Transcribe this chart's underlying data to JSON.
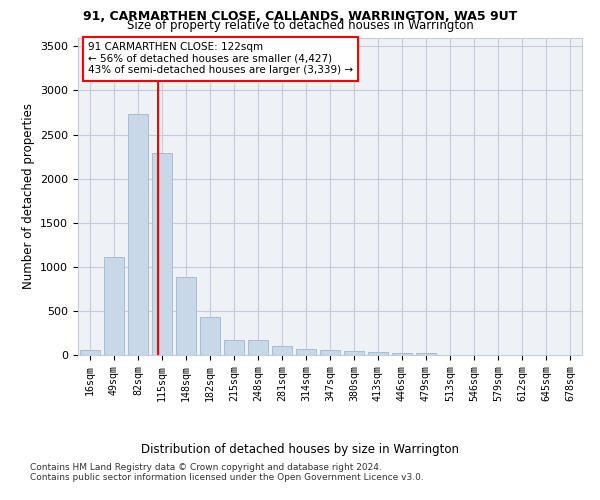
{
  "title": "91, CARMARTHEN CLOSE, CALLANDS, WARRINGTON, WA5 9UT",
  "subtitle": "Size of property relative to detached houses in Warrington",
  "xlabel": "Distribution of detached houses by size in Warrington",
  "ylabel": "Number of detached properties",
  "bar_color": "#c8d8e8",
  "bar_edgecolor": "#a0b8cc",
  "categories": [
    "16sqm",
    "49sqm",
    "82sqm",
    "115sqm",
    "148sqm",
    "182sqm",
    "215sqm",
    "248sqm",
    "281sqm",
    "314sqm",
    "347sqm",
    "380sqm",
    "413sqm",
    "446sqm",
    "479sqm",
    "513sqm",
    "546sqm",
    "579sqm",
    "612sqm",
    "645sqm",
    "678sqm"
  ],
  "values": [
    55,
    1110,
    2730,
    2290,
    880,
    430,
    175,
    165,
    100,
    65,
    55,
    45,
    30,
    20,
    20,
    5,
    5,
    5,
    5,
    5,
    5
  ],
  "ylim": [
    0,
    3600
  ],
  "yticks": [
    0,
    500,
    1000,
    1500,
    2000,
    2500,
    3000,
    3500
  ],
  "property_label": "91 CARMARTHEN CLOSE: 122sqm",
  "pct_smaller": "56% of detached houses are smaller (4,427)",
  "pct_larger": "43% of semi-detached houses are larger (3,339)",
  "redline_x": 2.82,
  "bg_color": "#eef2f7",
  "grid_color": "#c5cdd8",
  "footer1": "Contains HM Land Registry data © Crown copyright and database right 2024.",
  "footer2": "Contains public sector information licensed under the Open Government Licence v3.0."
}
